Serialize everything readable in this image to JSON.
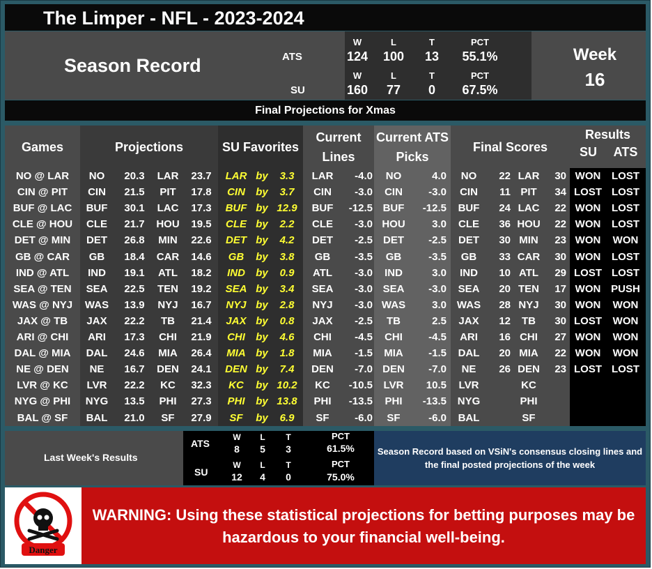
{
  "title": "The Limper - NFL - 2023-2024",
  "season": {
    "label": "Season Record",
    "headers": {
      "w": "W",
      "l": "L",
      "t": "T",
      "pct": "PCT"
    },
    "ats": {
      "label": "ATS",
      "w": "124",
      "l": "100",
      "t": "13",
      "pct": "55.1%"
    },
    "su": {
      "label": "SU",
      "w": "160",
      "l": "77",
      "t": "0",
      "pct": "67.5%"
    },
    "week_label": "Week",
    "week_num": "16"
  },
  "subtitle": "Final Projections for Xmas",
  "columns": {
    "games": "Games",
    "projections": "Projections",
    "su_favorites": "SU Favorites",
    "current_lines_1": "Current",
    "current_lines_2": "Lines",
    "ats_picks_1": "Current ATS",
    "ats_picks_2": "Picks",
    "final_scores": "Final Scores",
    "results": "Results",
    "results_su": "SU",
    "results_ats": "ATS"
  },
  "rows": [
    {
      "game": "NO @ LAR",
      "pa": "NO",
      "pav": "20.3",
      "ph": "LAR",
      "phv": "23.7",
      "fav": "LAR",
      "by": "by",
      "favv": "3.3",
      "lt": "LAR",
      "lv": "-4.0",
      "pt": "NO",
      "pv": "4.0",
      "sa": "NO",
      "sav": "22",
      "sh": "LAR",
      "shv": "30",
      "su": "WON",
      "ats": "LOST"
    },
    {
      "game": "CIN @ PIT",
      "pa": "CIN",
      "pav": "21.5",
      "ph": "PIT",
      "phv": "17.8",
      "fav": "CIN",
      "by": "by",
      "favv": "3.7",
      "lt": "CIN",
      "lv": "-3.0",
      "pt": "CIN",
      "pv": "-3.0",
      "sa": "CIN",
      "sav": "11",
      "sh": "PIT",
      "shv": "34",
      "su": "LOST",
      "ats": "LOST"
    },
    {
      "game": "BUF @ LAC",
      "pa": "BUF",
      "pav": "30.1",
      "ph": "LAC",
      "phv": "17.3",
      "fav": "BUF",
      "by": "by",
      "favv": "12.9",
      "lt": "BUF",
      "lv": "-12.5",
      "pt": "BUF",
      "pv": "-12.5",
      "sa": "BUF",
      "sav": "24",
      "sh": "LAC",
      "shv": "22",
      "su": "WON",
      "ats": "LOST"
    },
    {
      "game": "CLE @ HOU",
      "pa": "CLE",
      "pav": "21.7",
      "ph": "HOU",
      "phv": "19.5",
      "fav": "CLE",
      "by": "by",
      "favv": "2.2",
      "lt": "CLE",
      "lv": "-3.0",
      "pt": "HOU",
      "pv": "3.0",
      "sa": "CLE",
      "sav": "36",
      "sh": "HOU",
      "shv": "22",
      "su": "WON",
      "ats": "LOST"
    },
    {
      "game": "DET @ MIN",
      "pa": "DET",
      "pav": "26.8",
      "ph": "MIN",
      "phv": "22.6",
      "fav": "DET",
      "by": "by",
      "favv": "4.2",
      "lt": "DET",
      "lv": "-2.5",
      "pt": "DET",
      "pv": "-2.5",
      "sa": "DET",
      "sav": "30",
      "sh": "MIN",
      "shv": "23",
      "su": "WON",
      "ats": "WON"
    },
    {
      "game": "GB @ CAR",
      "pa": "GB",
      "pav": "18.4",
      "ph": "CAR",
      "phv": "14.6",
      "fav": "GB",
      "by": "by",
      "favv": "3.8",
      "lt": "GB",
      "lv": "-3.5",
      "pt": "GB",
      "pv": "-3.5",
      "sa": "GB",
      "sav": "33",
      "sh": "CAR",
      "shv": "30",
      "su": "WON",
      "ats": "LOST"
    },
    {
      "game": "IND @ ATL",
      "pa": "IND",
      "pav": "19.1",
      "ph": "ATL",
      "phv": "18.2",
      "fav": "IND",
      "by": "by",
      "favv": "0.9",
      "lt": "ATL",
      "lv": "-3.0",
      "pt": "IND",
      "pv": "3.0",
      "sa": "IND",
      "sav": "10",
      "sh": "ATL",
      "shv": "29",
      "su": "LOST",
      "ats": "LOST"
    },
    {
      "game": "SEA @ TEN",
      "pa": "SEA",
      "pav": "22.5",
      "ph": "TEN",
      "phv": "19.2",
      "fav": "SEA",
      "by": "by",
      "favv": "3.4",
      "lt": "SEA",
      "lv": "-3.0",
      "pt": "SEA",
      "pv": "-3.0",
      "sa": "SEA",
      "sav": "20",
      "sh": "TEN",
      "shv": "17",
      "su": "WON",
      "ats": "PUSH"
    },
    {
      "game": "WAS @ NYJ",
      "pa": "WAS",
      "pav": "13.9",
      "ph": "NYJ",
      "phv": "16.7",
      "fav": "NYJ",
      "by": "by",
      "favv": "2.8",
      "lt": "NYJ",
      "lv": "-3.0",
      "pt": "WAS",
      "pv": "3.0",
      "sa": "WAS",
      "sav": "28",
      "sh": "NYJ",
      "shv": "30",
      "su": "WON",
      "ats": "WON"
    },
    {
      "game": "JAX @ TB",
      "pa": "JAX",
      "pav": "22.2",
      "ph": "TB",
      "phv": "21.4",
      "fav": "JAX",
      "by": "by",
      "favv": "0.8",
      "lt": "JAX",
      "lv": "-2.5",
      "pt": "TB",
      "pv": "2.5",
      "sa": "JAX",
      "sav": "12",
      "sh": "TB",
      "shv": "30",
      "su": "LOST",
      "ats": "WON"
    },
    {
      "game": "ARI @ CHI",
      "pa": "ARI",
      "pav": "17.3",
      "ph": "CHI",
      "phv": "21.9",
      "fav": "CHI",
      "by": "by",
      "favv": "4.6",
      "lt": "CHI",
      "lv": "-4.5",
      "pt": "CHI",
      "pv": "-4.5",
      "sa": "ARI",
      "sav": "16",
      "sh": "CHI",
      "shv": "27",
      "su": "WON",
      "ats": "WON"
    },
    {
      "game": "DAL @ MIA",
      "pa": "DAL",
      "pav": "24.6",
      "ph": "MIA",
      "phv": "26.4",
      "fav": "MIA",
      "by": "by",
      "favv": "1.8",
      "lt": "MIA",
      "lv": "-1.5",
      "pt": "MIA",
      "pv": "-1.5",
      "sa": "DAL",
      "sav": "20",
      "sh": "MIA",
      "shv": "22",
      "su": "WON",
      "ats": "WON"
    },
    {
      "game": "NE @ DEN",
      "pa": "NE",
      "pav": "16.7",
      "ph": "DEN",
      "phv": "24.1",
      "fav": "DEN",
      "by": "by",
      "favv": "7.4",
      "lt": "DEN",
      "lv": "-7.0",
      "pt": "DEN",
      "pv": "-7.0",
      "sa": "NE",
      "sav": "26",
      "sh": "DEN",
      "shv": "23",
      "su": "LOST",
      "ats": "LOST"
    },
    {
      "game": "LVR @ KC",
      "pa": "LVR",
      "pav": "22.2",
      "ph": "KC",
      "phv": "32.3",
      "fav": "KC",
      "by": "by",
      "favv": "10.2",
      "lt": "KC",
      "lv": "-10.5",
      "pt": "LVR",
      "pv": "10.5",
      "sa": "LVR",
      "sav": "",
      "sh": "KC",
      "shv": "",
      "su": "",
      "ats": ""
    },
    {
      "game": "NYG @ PHI",
      "pa": "NYG",
      "pav": "13.5",
      "ph": "PHI",
      "phv": "27.3",
      "fav": "PHI",
      "by": "by",
      "favv": "13.8",
      "lt": "PHI",
      "lv": "-13.5",
      "pt": "PHI",
      "pv": "-13.5",
      "sa": "NYG",
      "sav": "",
      "sh": "PHI",
      "shv": "",
      "su": "",
      "ats": ""
    },
    {
      "game": "BAL @ SF",
      "pa": "BAL",
      "pav": "21.0",
      "ph": "SF",
      "phv": "27.9",
      "fav": "SF",
      "by": "by",
      "favv": "6.9",
      "lt": "SF",
      "lv": "-6.0",
      "pt": "SF",
      "pv": "-6.0",
      "sa": "BAL",
      "sav": "",
      "sh": "SF",
      "shv": "",
      "su": "",
      "ats": ""
    }
  ],
  "last_week": {
    "label": "Last Week's Results",
    "ats": {
      "label": "ATS",
      "w": "8",
      "l": "5",
      "t": "3",
      "pct": "61.5%"
    },
    "su": {
      "label": "SU",
      "w": "12",
      "l": "4",
      "t": "0",
      "pct": "75.0%"
    },
    "headers": {
      "w": "W",
      "l": "L",
      "t": "T",
      "pct": "PCT"
    },
    "note": "Season Record based on VSiN's consensus closing lines and the final posted projections of the week"
  },
  "warning": {
    "text": "WARNING: Using these statistical projections for betting purposes may be hazardous to your financial well-being.",
    "icon_label": "Danger"
  },
  "colors": {
    "frame": "#2b5a66",
    "panel": "#4a4a4a",
    "highlight": "#ffff33",
    "warning": "#c40f0f",
    "note": "#1f3d60"
  }
}
